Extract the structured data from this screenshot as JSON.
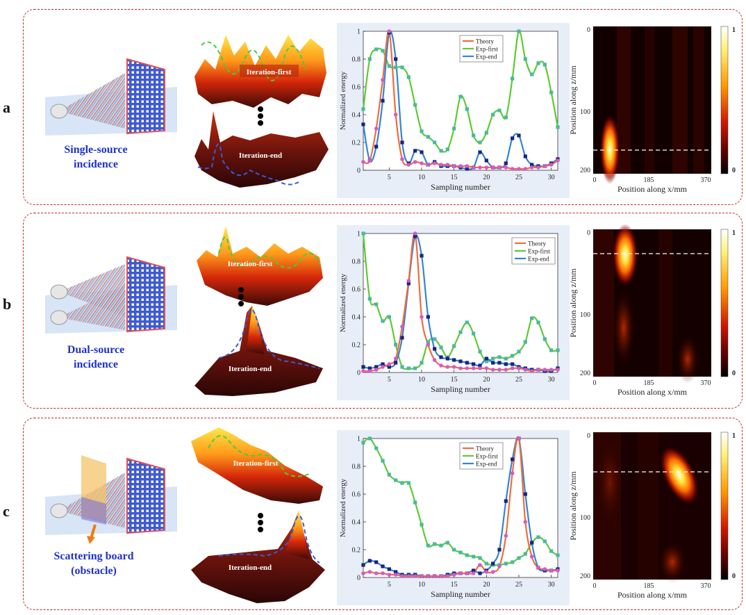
{
  "rows": [
    {
      "label": "a",
      "caption": [
        "Single-source",
        "incidence"
      ],
      "surface_labels": {
        "first": "Iteration-first",
        "end": "Iteration-end"
      },
      "chart_data": {
        "type": "line",
        "xlabel": "Sampling number",
        "ylabel": "Normalized energy",
        "xlim": [
          1,
          31
        ],
        "ylim": [
          0,
          1
        ],
        "xticks": [
          5,
          10,
          15,
          20,
          25,
          30
        ],
        "yticks": [
          0,
          0.2,
          0.4,
          0.6,
          0.8,
          1
        ],
        "legend_position": "top-center",
        "x": [
          1,
          2,
          3,
          4,
          5,
          6,
          7,
          8,
          9,
          10,
          11,
          12,
          13,
          14,
          15,
          16,
          17,
          18,
          19,
          20,
          21,
          22,
          23,
          24,
          25,
          26,
          27,
          28,
          29,
          30,
          31
        ],
        "series": [
          {
            "name": "Theory",
            "color": "#f26b3a",
            "marker_color": "#d858c8",
            "values": [
              0.06,
              0.07,
              0.3,
              0.65,
              1.0,
              0.4,
              0.08,
              0.04,
              0.06,
              0.05,
              0.04,
              0.05,
              0.04,
              0.04,
              0.03,
              0.03,
              0.03,
              0.02,
              0.02,
              0.02,
              0.02,
              0.02,
              0.02,
              0.01,
              0.01,
              0.01,
              0.02,
              0.02,
              0.03,
              0.04,
              0.07
            ]
          },
          {
            "name": "Exp-first",
            "color": "#5ccb31",
            "marker_color": "#4ab89e",
            "values": [
              0.44,
              0.8,
              0.87,
              0.86,
              0.75,
              0.74,
              0.74,
              0.67,
              0.47,
              0.28,
              0.24,
              0.2,
              0.14,
              0.15,
              0.3,
              0.53,
              0.44,
              0.25,
              0.2,
              0.27,
              0.4,
              0.43,
              0.38,
              0.66,
              1.0,
              0.8,
              0.69,
              0.77,
              0.76,
              0.56,
              0.31
            ]
          },
          {
            "name": "Exp-end",
            "color": "#2f86d6",
            "marker_color": "#1a237e",
            "values": [
              0.33,
              0.07,
              0.17,
              0.5,
              0.99,
              0.8,
              0.2,
              0.05,
              0.14,
              0.13,
              0.04,
              0.06,
              0.03,
              0.03,
              0.03,
              0.02,
              0.01,
              0.02,
              0.13,
              0.07,
              0.02,
              0.02,
              0.05,
              0.23,
              0.25,
              0.1,
              0.04,
              0.03,
              0.03,
              0.05,
              0.08
            ]
          }
        ]
      },
      "heatmap": {
        "xlabel": "Position along x/mm",
        "ylabel": "Position along z/mm",
        "xticks": [
          "0",
          "185",
          "370"
        ],
        "yticks": [
          "0",
          "100",
          "200"
        ],
        "colorbar_ticks": [
          "1",
          "0"
        ]
      }
    },
    {
      "label": "b",
      "caption": [
        "Dual-source",
        "incidence"
      ],
      "surface_labels": {
        "first": "Iteration-first",
        "end": "Iteration-end"
      },
      "chart_data": {
        "type": "line",
        "xlabel": "Sampling number",
        "ylabel": "Normalized energy",
        "xlim": [
          1,
          31
        ],
        "ylim": [
          0,
          1
        ],
        "xticks": [
          5,
          10,
          15,
          20,
          25,
          30
        ],
        "yticks": [
          0,
          0.2,
          0.4,
          0.6,
          0.8,
          1
        ],
        "legend_position": "top-right",
        "x": [
          1,
          2,
          3,
          4,
          5,
          6,
          7,
          8,
          9,
          10,
          11,
          12,
          13,
          14,
          15,
          16,
          17,
          18,
          19,
          20,
          21,
          22,
          23,
          24,
          25,
          26,
          27,
          28,
          29,
          30,
          31
        ],
        "series": [
          {
            "name": "Theory",
            "color": "#f26b3a",
            "marker_color": "#d858c8",
            "values": [
              0.01,
              0.01,
              0.02,
              0.04,
              0.06,
              0.1,
              0.33,
              0.66,
              1.0,
              0.4,
              0.2,
              0.09,
              0.05,
              0.04,
              0.04,
              0.03,
              0.03,
              0.03,
              0.03,
              0.03,
              0.02,
              0.02,
              0.02,
              0.03,
              0.03,
              0.02,
              0.01,
              0.02,
              0.02,
              0.02,
              0.02
            ]
          },
          {
            "name": "Exp-first",
            "color": "#5ccb31",
            "marker_color": "#4ab89e",
            "values": [
              1.0,
              0.53,
              0.49,
              0.37,
              0.4,
              0.2,
              0.04,
              0.03,
              0.03,
              0.07,
              0.22,
              0.24,
              0.18,
              0.11,
              0.19,
              0.29,
              0.36,
              0.28,
              0.15,
              0.08,
              0.1,
              0.11,
              0.1,
              0.12,
              0.15,
              0.22,
              0.39,
              0.36,
              0.24,
              0.16,
              0.16
            ]
          },
          {
            "name": "Exp-end",
            "color": "#2f86d6",
            "marker_color": "#1a237e",
            "values": [
              0.04,
              0.03,
              0.04,
              0.06,
              0.04,
              0.07,
              0.25,
              0.64,
              0.98,
              0.84,
              0.4,
              0.17,
              0.11,
              0.1,
              0.09,
              0.08,
              0.07,
              0.06,
              0.05,
              0.1,
              0.07,
              0.07,
              0.06,
              0.06,
              0.04,
              0.03,
              0.02,
              0.02,
              0.01,
              0.01,
              0.03
            ]
          }
        ]
      },
      "heatmap": {
        "xlabel": "Position along x/mm",
        "ylabel": "Position along z/mm",
        "xticks": [
          "0",
          "185",
          "370"
        ],
        "yticks": [
          "0",
          "100",
          "200"
        ],
        "colorbar_ticks": [
          "1",
          "0"
        ]
      }
    },
    {
      "label": "c",
      "caption": [
        "Scattering board",
        "(obstacle)"
      ],
      "surface_labels": {
        "first": "Iteration-first",
        "end": "Iteration-end"
      },
      "chart_data": {
        "type": "line",
        "xlabel": "Sampling number",
        "ylabel": "Normalized energy",
        "xlim": [
          1,
          31
        ],
        "ylim": [
          0,
          1
        ],
        "xticks": [
          5,
          10,
          15,
          20,
          25,
          30
        ],
        "yticks": [
          0,
          0.2,
          0.4,
          0.6,
          0.8,
          1
        ],
        "legend_position": "top-center",
        "x": [
          1,
          2,
          3,
          4,
          5,
          6,
          7,
          8,
          9,
          10,
          11,
          12,
          13,
          14,
          15,
          16,
          17,
          18,
          19,
          20,
          21,
          22,
          23,
          24,
          25,
          26,
          27,
          28,
          29,
          30,
          31
        ],
        "series": [
          {
            "name": "Theory",
            "color": "#f26b3a",
            "marker_color": "#d858c8",
            "values": [
              0.03,
              0.04,
              0.03,
              0.03,
              0.02,
              0.02,
              0.01,
              0.01,
              0.01,
              0.01,
              0.01,
              0.01,
              0.01,
              0.01,
              0.02,
              0.03,
              0.03,
              0.03,
              0.09,
              0.04,
              0.04,
              0.08,
              0.3,
              0.75,
              1.0,
              0.4,
              0.15,
              0.07,
              0.06,
              0.05,
              0.05
            ]
          },
          {
            "name": "Exp-first",
            "color": "#5ccb31",
            "marker_color": "#4ab89e",
            "values": [
              0.97,
              1.0,
              0.93,
              0.84,
              0.74,
              0.7,
              0.68,
              0.68,
              0.54,
              0.38,
              0.23,
              0.24,
              0.23,
              0.25,
              0.2,
              0.18,
              0.16,
              0.15,
              0.14,
              0.1,
              0.09,
              0.09,
              0.1,
              0.11,
              0.14,
              0.17,
              0.25,
              0.29,
              0.26,
              0.19,
              0.16
            ]
          },
          {
            "name": "Exp-end",
            "color": "#2f86d6",
            "marker_color": "#1a237e",
            "values": [
              0.09,
              0.12,
              0.11,
              0.08,
              0.06,
              0.04,
              0.02,
              0.02,
              0.02,
              0.01,
              0.01,
              0.01,
              0.01,
              0.02,
              0.03,
              0.03,
              0.03,
              0.05,
              0.03,
              0.05,
              0.1,
              0.2,
              0.55,
              0.85,
              1.0,
              0.6,
              0.25,
              0.07,
              0.05,
              0.05,
              0.06
            ]
          }
        ]
      },
      "heatmap": {
        "xlabel": "Position along x/mm",
        "ylabel": "Position along z/mm",
        "xticks": [
          "0",
          "185",
          "370"
        ],
        "yticks": [
          "0",
          "100",
          "200"
        ],
        "colorbar_ticks": [
          "1",
          "0"
        ]
      }
    }
  ]
}
